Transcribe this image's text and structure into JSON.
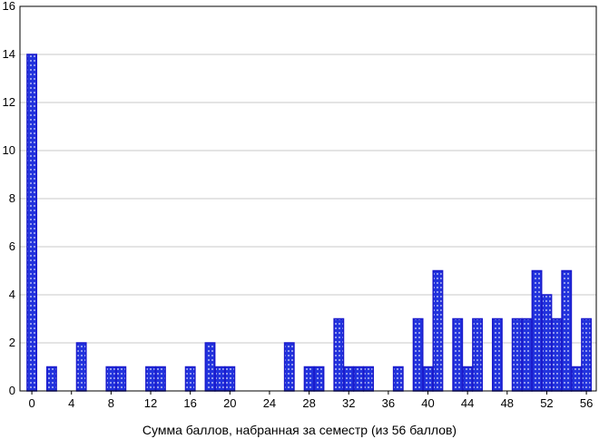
{
  "chart_data": {
    "type": "bar",
    "xlabel": "Сумма баллов, набранная за семестр (из 56 баллов)",
    "ylabel": "",
    "xlim": [
      -1.2,
      57
    ],
    "ylim": [
      0,
      16
    ],
    "xticks": [
      0,
      4,
      8,
      12,
      16,
      20,
      24,
      28,
      32,
      36,
      40,
      44,
      48,
      52,
      56
    ],
    "yticks": [
      0,
      2,
      4,
      6,
      8,
      10,
      12,
      14,
      16
    ],
    "grid": true,
    "bar_color": "#1a1acc",
    "bar_fill": "#2233dd",
    "x": [
      0,
      2,
      5,
      8,
      9,
      12,
      13,
      16,
      18,
      19,
      20,
      26,
      28,
      29,
      31,
      32,
      33,
      34,
      37,
      39,
      40,
      41,
      43,
      44,
      45,
      47,
      49,
      50,
      51,
      52,
      53,
      54,
      55,
      56
    ],
    "values": [
      14,
      1,
      2,
      1,
      1,
      1,
      1,
      1,
      2,
      1,
      1,
      2,
      1,
      1,
      3,
      1,
      1,
      1,
      1,
      3,
      1,
      5,
      3,
      1,
      3,
      3,
      3,
      3,
      5,
      4,
      3,
      5,
      1,
      3
    ]
  }
}
